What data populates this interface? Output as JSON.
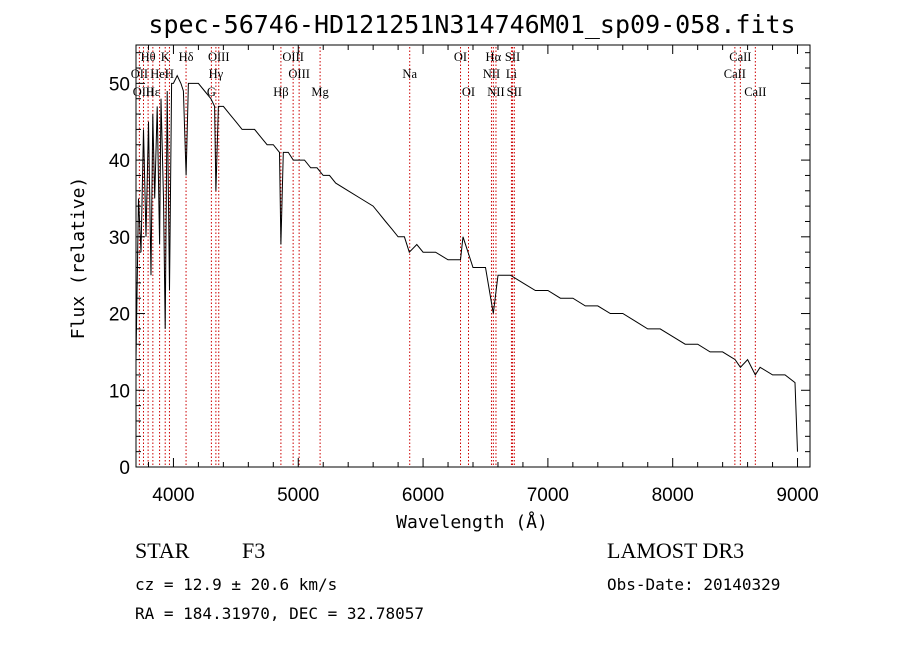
{
  "chart_data": {
    "type": "line",
    "title": "spec-56746-HD121251N314746M01_sp09-058.fits",
    "xlabel": "Wavelength (Å)",
    "ylabel": "Flux (relative)",
    "xlim": [
      3700,
      9100
    ],
    "ylim": [
      0,
      55
    ],
    "xticks": [
      4000,
      5000,
      6000,
      7000,
      8000,
      9000
    ],
    "yticks": [
      0,
      10,
      20,
      30,
      40,
      50
    ],
    "series": [
      {
        "name": "spectrum",
        "x": [
          3700,
          3720,
          3740,
          3760,
          3780,
          3800,
          3820,
          3835,
          3850,
          3870,
          3889,
          3900,
          3920,
          3934,
          3950,
          3968,
          3985,
          4000,
          4030,
          4060,
          4080,
          4101,
          4120,
          4150,
          4200,
          4250,
          4300,
          4330,
          4340,
          4360,
          4400,
          4450,
          4500,
          4550,
          4600,
          4650,
          4700,
          4750,
          4800,
          4850,
          4861,
          4880,
          4920,
          4960,
          5000,
          5050,
          5100,
          5150,
          5200,
          5250,
          5300,
          5400,
          5500,
          5600,
          5650,
          5700,
          5750,
          5800,
          5850,
          5890,
          5950,
          6000,
          6100,
          6200,
          6300,
          6320,
          6400,
          6500,
          6563,
          6600,
          6700,
          6800,
          6900,
          7000,
          7100,
          7200,
          7300,
          7400,
          7500,
          7600,
          7700,
          7800,
          7900,
          8000,
          8100,
          8200,
          8300,
          8400,
          8500,
          8542,
          8600,
          8662,
          8700,
          8800,
          8900,
          8980,
          9000
        ],
        "y": [
          14,
          35,
          28,
          44,
          30,
          45,
          25,
          46,
          35,
          47,
          29,
          48,
          35,
          18,
          49,
          23,
          50,
          50,
          51,
          50,
          49,
          38,
          50,
          50,
          50,
          49,
          48,
          47,
          36,
          47,
          47,
          46,
          45,
          44,
          44,
          44,
          43,
          42,
          42,
          41,
          29,
          41,
          41,
          40,
          40,
          40,
          39,
          39,
          38,
          38,
          37,
          36,
          35,
          34,
          33,
          32,
          31,
          30,
          30,
          28,
          29,
          28,
          28,
          27,
          27,
          30,
          26,
          26,
          20,
          25,
          25,
          24,
          23,
          23,
          22,
          22,
          21,
          21,
          20,
          20,
          19,
          18,
          18,
          17,
          16,
          16,
          15,
          15,
          14,
          13,
          14,
          12,
          13,
          12,
          12,
          11,
          2
        ]
      }
    ],
    "lines": [
      {
        "label": "Hθ",
        "wl": 3797,
        "row": 1
      },
      {
        "label": "OII",
        "wl": 3727,
        "row": 2
      },
      {
        "label": "OIII",
        "wl": 3760,
        "row": 3
      },
      {
        "label": "Hε",
        "wl": 3835,
        "row": 3
      },
      {
        "label": "HeI",
        "wl": 3889,
        "row": 2
      },
      {
        "label": "K",
        "wl": 3934,
        "row": 1
      },
      {
        "label": "H",
        "wl": 3968,
        "row": 2
      },
      {
        "label": "Hδ",
        "wl": 4101,
        "row": 1
      },
      {
        "label": "G",
        "wl": 4304,
        "row": 3
      },
      {
        "label": "OIII",
        "wl": 4363,
        "row": 1
      },
      {
        "label": "Hγ",
        "wl": 4340,
        "row": 2
      },
      {
        "label": "OIII",
        "wl": 4959,
        "row": 1
      },
      {
        "label": "OIII",
        "wl": 5007,
        "row": 2
      },
      {
        "label": "Hβ",
        "wl": 4861,
        "row": 3
      },
      {
        "label": "Mg",
        "wl": 5175,
        "row": 3
      },
      {
        "label": "Na",
        "wl": 5893,
        "row": 2
      },
      {
        "label": "OI",
        "wl": 6300,
        "row": 1
      },
      {
        "label": "OI",
        "wl": 6364,
        "row": 3
      },
      {
        "label": "Hα",
        "wl": 6563,
        "row": 1
      },
      {
        "label": "NII",
        "wl": 6548,
        "row": 2
      },
      {
        "label": "NII",
        "wl": 6584,
        "row": 3
      },
      {
        "label": "SII",
        "wl": 6717,
        "row": 1
      },
      {
        "label": "Li",
        "wl": 6708,
        "row": 2
      },
      {
        "label": "SII",
        "wl": 6731,
        "row": 3
      },
      {
        "label": "CaII",
        "wl": 8542,
        "row": 1
      },
      {
        "label": "CaII",
        "wl": 8498,
        "row": 2
      },
      {
        "label": "CaII",
        "wl": 8662,
        "row": 3
      }
    ]
  },
  "info": {
    "type_label": "STAR",
    "subclass": "F3",
    "survey": "LAMOST DR3",
    "cz": "cz = 12.9 ± 20.6 km/s",
    "obs_date": "Obs-Date: 20140329",
    "coords": "RA = 184.31970, DEC =  32.78057"
  },
  "colors": {
    "spectrum": "#000000",
    "line_marker": "#cc0000",
    "axis": "#000000"
  }
}
